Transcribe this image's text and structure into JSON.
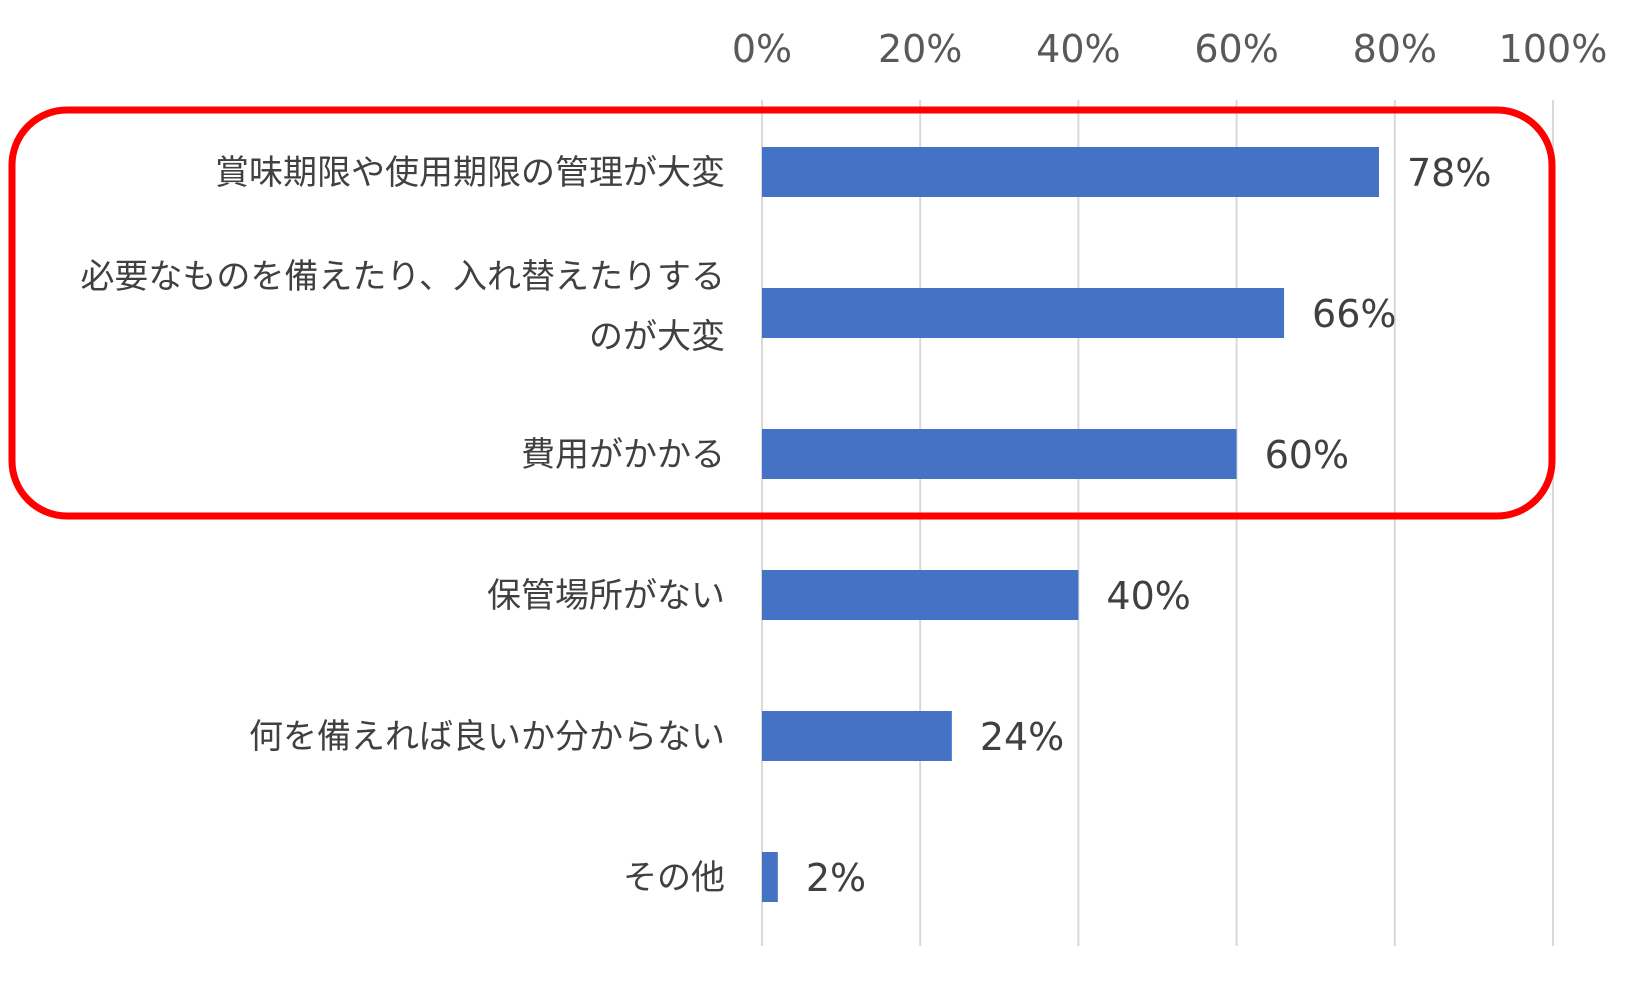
{
  "chart_data": {
    "type": "bar",
    "orientation": "horizontal",
    "categories": [
      [
        "賞味期限や使用期限の管理が大変"
      ],
      [
        "必要なものを備えたり、入れ替えたりする",
        "のが大変"
      ],
      [
        "費用がかかる"
      ],
      [
        "保管場所がない"
      ],
      [
        "何を備えれば良いか分からない"
      ],
      [
        "その他"
      ]
    ],
    "values": [
      78,
      66,
      60,
      40,
      24,
      2
    ],
    "value_labels": [
      "78%",
      "66%",
      "60%",
      "40%",
      "24%",
      "2%"
    ],
    "xlim": [
      0,
      100
    ],
    "xticks": [
      0,
      20,
      40,
      60,
      80,
      100
    ],
    "xtick_labels": [
      "0%",
      "20%",
      "40%",
      "60%",
      "80%",
      "100%"
    ],
    "axis_position": "top",
    "grid": true,
    "bar_color": "#4472c4",
    "highlight": {
      "categories": [
        0,
        1,
        2
      ],
      "style": "rounded-rectangle",
      "color": "#ff0000"
    }
  }
}
